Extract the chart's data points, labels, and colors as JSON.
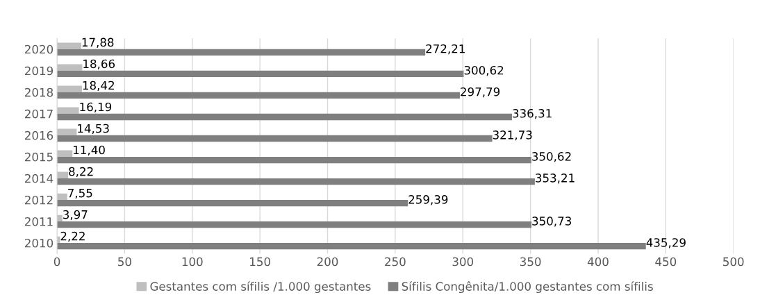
{
  "chart_data": {
    "type": "bar",
    "orientation": "horizontal",
    "categories": [
      "2020",
      "2019",
      "2018",
      "2017",
      "2016",
      "2015",
      "2014",
      "2012",
      "2011",
      "2010"
    ],
    "series": [
      {
        "name": "Gestantes com sífilis /1.000 gestantes",
        "color": "#bfbfbf",
        "values": [
          17.88,
          18.66,
          18.42,
          16.19,
          14.53,
          11.4,
          8.22,
          7.55,
          3.97,
          2.22
        ],
        "value_labels": [
          "17,88",
          "18,66",
          "18,42",
          "16,19",
          "14,53",
          "11,40",
          "8,22",
          "7,55",
          "3,97",
          "2,22"
        ]
      },
      {
        "name": "Sífilis Congênita/1.000 gestantes com sífilis",
        "color": "#7f7f7f",
        "values": [
          272.21,
          300.62,
          297.79,
          336.31,
          321.73,
          350.62,
          353.21,
          259.39,
          350.73,
          435.29
        ],
        "value_labels": [
          "272,21",
          "300,62",
          "297,79",
          "336,31",
          "321,73",
          "350,62",
          "353,21",
          "259,39",
          "350,73",
          "435,29"
        ]
      }
    ],
    "xlim": [
      0,
      500
    ],
    "xticks": [
      0,
      50,
      100,
      150,
      200,
      250,
      300,
      350,
      400,
      450,
      500
    ],
    "grid": "x",
    "legend": "bottom"
  }
}
